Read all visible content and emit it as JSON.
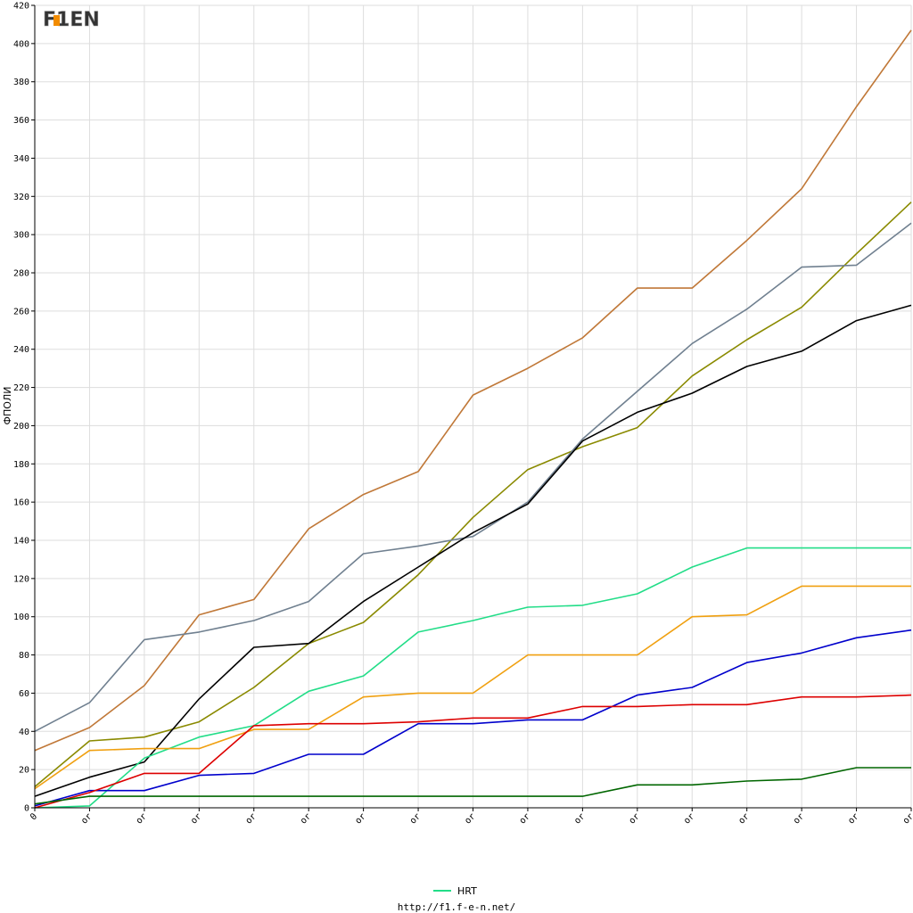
{
  "logo": {
    "text": "F1EN",
    "colors": {
      "dark": "#333333",
      "accent": "#f28c00"
    }
  },
  "footer": {
    "url": "http://f1.f-e-n.net/"
  },
  "chart_data": {
    "type": "line",
    "ylabel": "ФПОЛИ",
    "ylim": [
      0,
      420
    ],
    "yticks": [
      0,
      20,
      40,
      60,
      80,
      100,
      120,
      140,
      160,
      180,
      200,
      220,
      240,
      260,
      280,
      300,
      320,
      340,
      360,
      380,
      400,
      420
    ],
    "categories": [
      "0",
      "or",
      "or",
      "or",
      "or",
      "or",
      "or",
      "or",
      "or",
      "or",
      "or",
      "or",
      "or",
      "or",
      "or",
      "or",
      "or"
    ],
    "grid": true,
    "legend_position": "bottom",
    "legend": [
      {
        "label": "HRT",
        "color": "#22dd88"
      }
    ],
    "series": [
      {
        "color": "#c07838",
        "values": [
          30,
          42,
          64,
          101,
          109,
          146,
          164,
          176,
          216,
          230,
          246,
          272,
          272,
          297,
          324,
          367,
          407
        ]
      },
      {
        "color": "#8a8a00",
        "values": [
          11,
          35,
          37,
          45,
          63,
          86,
          97,
          122,
          152,
          177,
          189,
          199,
          226,
          245,
          262,
          290,
          317
        ]
      },
      {
        "color": "#708090",
        "values": [
          40,
          55,
          88,
          92,
          98,
          108,
          133,
          137,
          142,
          160,
          193,
          218,
          243,
          261,
          283,
          284,
          306
        ]
      },
      {
        "color": "#000000",
        "values": [
          6,
          16,
          24,
          57,
          84,
          86,
          108,
          126,
          144,
          159,
          192,
          207,
          217,
          231,
          239,
          255,
          263
        ]
      },
      {
        "color": "#22dd88",
        "values": [
          0,
          1,
          26,
          37,
          43,
          61,
          69,
          92,
          98,
          105,
          106,
          112,
          126,
          136,
          136,
          136,
          136
        ]
      },
      {
        "color": "#f0a010",
        "values": [
          10,
          30,
          31,
          31,
          41,
          41,
          58,
          60,
          60,
          80,
          80,
          80,
          100,
          101,
          116,
          116,
          116
        ]
      },
      {
        "color": "#0000cc",
        "values": [
          1,
          9,
          9,
          17,
          18,
          28,
          28,
          44,
          44,
          46,
          46,
          59,
          63,
          76,
          81,
          89,
          93
        ]
      },
      {
        "color": "#dd0000",
        "values": [
          0,
          8,
          18,
          18,
          43,
          44,
          44,
          45,
          47,
          47,
          53,
          53,
          54,
          54,
          58,
          58,
          59
        ]
      },
      {
        "color": "#006600",
        "values": [
          2,
          6,
          6,
          6,
          6,
          6,
          6,
          6,
          6,
          6,
          6,
          12,
          12,
          14,
          15,
          21,
          21
        ]
      }
    ]
  }
}
